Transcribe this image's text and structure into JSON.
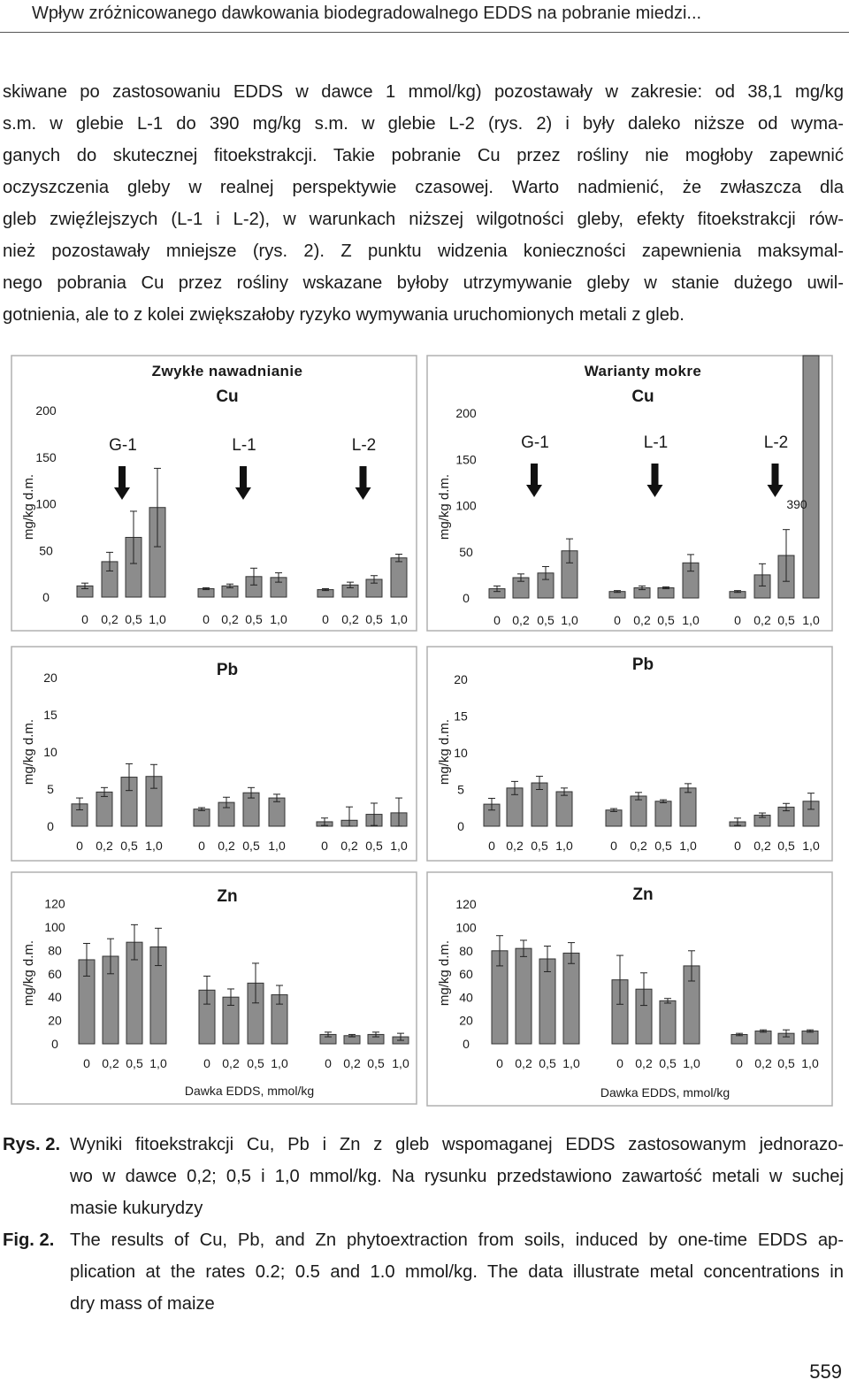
{
  "header": {
    "running_title": "Wpływ zróżnicowanego dawkowania biodegradowalnego EDDS na pobranie miedzi..."
  },
  "body_lines": [
    "skiwane po zastosowaniu EDDS w dawce 1 mmol/kg) pozostawały w zakresie: od 38,1 mg/kg",
    "s.m. w glebie L-1 do 390 mg/kg s.m. w glebie L-2 (rys. 2) i były daleko niższe od wyma-",
    "ganych do skutecznej fitoekstrakcji. Takie pobranie Cu przez rośliny nie mogłoby zapewnić",
    "oczyszczenia gleby w realnej perspektywie czasowej. Warto nadmienić, że zwłaszcza dla",
    "gleb zwięźlejszych (L-1 i L-2), w warunkach niższej wilgotności gleby, efekty fitoekstrakcji rów-",
    "nież pozostawały mniejsze (rys. 2). Z punktu widzenia konieczności zapewnienia maksymal-",
    "nego pobrania Cu przez rośliny wskazane byłoby utrzymywanie gleby w stanie dużego uwil-",
    "gotnienia, ale to z kolei zwiększałoby ryzyko wymywania uruchomionych metali z gleb."
  ],
  "chart_data": [
    {
      "type": "bar",
      "panel_title": "Zwykłe nawadnianie",
      "title": "Cu",
      "ylabel": "mg/kg d.m.",
      "ylim": [
        0,
        200
      ],
      "yticks": [
        0,
        50,
        100,
        150,
        200
      ],
      "groups": [
        "G-1",
        "L-1",
        "L-2"
      ],
      "categories": [
        "0",
        "0,2",
        "0,5",
        "1,0"
      ],
      "values": [
        [
          12,
          38,
          64,
          96
        ],
        [
          9,
          12,
          22,
          21
        ],
        [
          8,
          13,
          19,
          42
        ]
      ],
      "errors": [
        [
          3,
          10,
          28,
          42
        ],
        [
          1,
          2,
          9,
          5
        ],
        [
          1,
          3,
          4,
          4
        ]
      ],
      "xlabel": ""
    },
    {
      "type": "bar",
      "panel_title": "Warianty mokre",
      "title": "Cu",
      "ylabel": "mg/kg d.m.",
      "ylim": [
        0,
        200
      ],
      "yticks": [
        0,
        50,
        100,
        150,
        200
      ],
      "groups": [
        "G-1",
        "L-1",
        "L-2"
      ],
      "categories": [
        "0",
        "0,2",
        "0,5",
        "1,0"
      ],
      "values": [
        [
          10,
          22,
          27,
          51
        ],
        [
          7,
          11,
          11,
          38
        ],
        [
          7,
          25,
          46,
          390
        ]
      ],
      "errors": [
        [
          3,
          4,
          7,
          13
        ],
        [
          1,
          2,
          1,
          9
        ],
        [
          1,
          12,
          28,
          0
        ]
      ],
      "value_label": "390",
      "xlabel": ""
    },
    {
      "type": "bar",
      "title": "Pb",
      "ylabel": "mg/kg d.m.",
      "ylim": [
        0,
        20
      ],
      "yticks": [
        0,
        5,
        10,
        15,
        20
      ],
      "categories": [
        "0",
        "0,2",
        "0,5",
        "1,0"
      ],
      "values": [
        [
          3.0,
          4.6,
          6.6,
          6.7
        ],
        [
          2.3,
          3.2,
          4.5,
          3.8
        ],
        [
          0.6,
          0.8,
          1.6,
          1.8
        ]
      ],
      "errors": [
        [
          0.8,
          0.6,
          1.8,
          1.6
        ],
        [
          0.2,
          0.7,
          0.7,
          0.5
        ],
        [
          0.5,
          1.8,
          1.5,
          2.0
        ]
      ],
      "xlabel": ""
    },
    {
      "type": "bar",
      "title": "Pb",
      "ylabel": "mg/kg d.m.",
      "ylim": [
        0,
        20
      ],
      "yticks": [
        0,
        5,
        10,
        15,
        20
      ],
      "categories": [
        "0",
        "0,2",
        "0,5",
        "1,0"
      ],
      "values": [
        [
          3.0,
          5.2,
          5.9,
          4.7
        ],
        [
          2.2,
          4.1,
          3.4,
          5.2
        ],
        [
          0.6,
          1.5,
          2.6,
          3.4
        ]
      ],
      "errors": [
        [
          0.8,
          0.9,
          0.9,
          0.5
        ],
        [
          0.2,
          0.5,
          0.2,
          0.6
        ],
        [
          0.5,
          0.3,
          0.5,
          1.1
        ]
      ],
      "xlabel": ""
    },
    {
      "type": "bar",
      "title": "Zn",
      "ylabel": "mg/kg d.m.",
      "ylim": [
        0,
        120
      ],
      "yticks": [
        0,
        20,
        40,
        60,
        80,
        100,
        120
      ],
      "categories": [
        "0",
        "0,2",
        "0,5",
        "1,0"
      ],
      "values": [
        [
          72,
          75,
          87,
          83
        ],
        [
          46,
          40,
          52,
          42
        ],
        [
          8,
          7,
          8,
          6
        ]
      ],
      "errors": [
        [
          14,
          15,
          15,
          16
        ],
        [
          12,
          7,
          17,
          8
        ],
        [
          2,
          1,
          2,
          3
        ]
      ],
      "xlabel": "Dawka EDDS, mmol/kg"
    },
    {
      "type": "bar",
      "title": "Zn",
      "ylabel": "mg/kg d.m.",
      "ylim": [
        0,
        120
      ],
      "yticks": [
        0,
        20,
        40,
        60,
        80,
        100,
        120
      ],
      "categories": [
        "0",
        "0,2",
        "0,5",
        "1,0"
      ],
      "values": [
        [
          80,
          82,
          73,
          78
        ],
        [
          55,
          47,
          37,
          67
        ],
        [
          8,
          11,
          9,
          11
        ]
      ],
      "errors": [
        [
          13,
          7,
          11,
          9
        ],
        [
          21,
          14,
          2,
          13
        ],
        [
          1,
          1,
          3,
          1
        ]
      ],
      "xlabel": "Dawka EDDS, mmol/kg"
    }
  ],
  "caption": {
    "pl_label": "Rys. 2.",
    "pl_lines": [
      "Wyniki fitoekstrakcji Cu, Pb i Zn z gleb wspomaganej EDDS zastosowanym jednorazo-",
      "wo w dawce 0,2; 0,5 i 1,0 mmol/kg. Na rysunku przedstawiono zawartość metali w suchej",
      "masie kukurydzy"
    ],
    "en_label": "Fig. 2.",
    "en_lines": [
      "The results of Cu, Pb, and Zn phytoextraction from soils, induced by one-time EDDS ap-",
      "plication at the rates 0.2; 0.5 and 1.0 mmol/kg. The data illustrate metal concentrations in",
      "dry mass of maize"
    ]
  },
  "page_number": "559"
}
